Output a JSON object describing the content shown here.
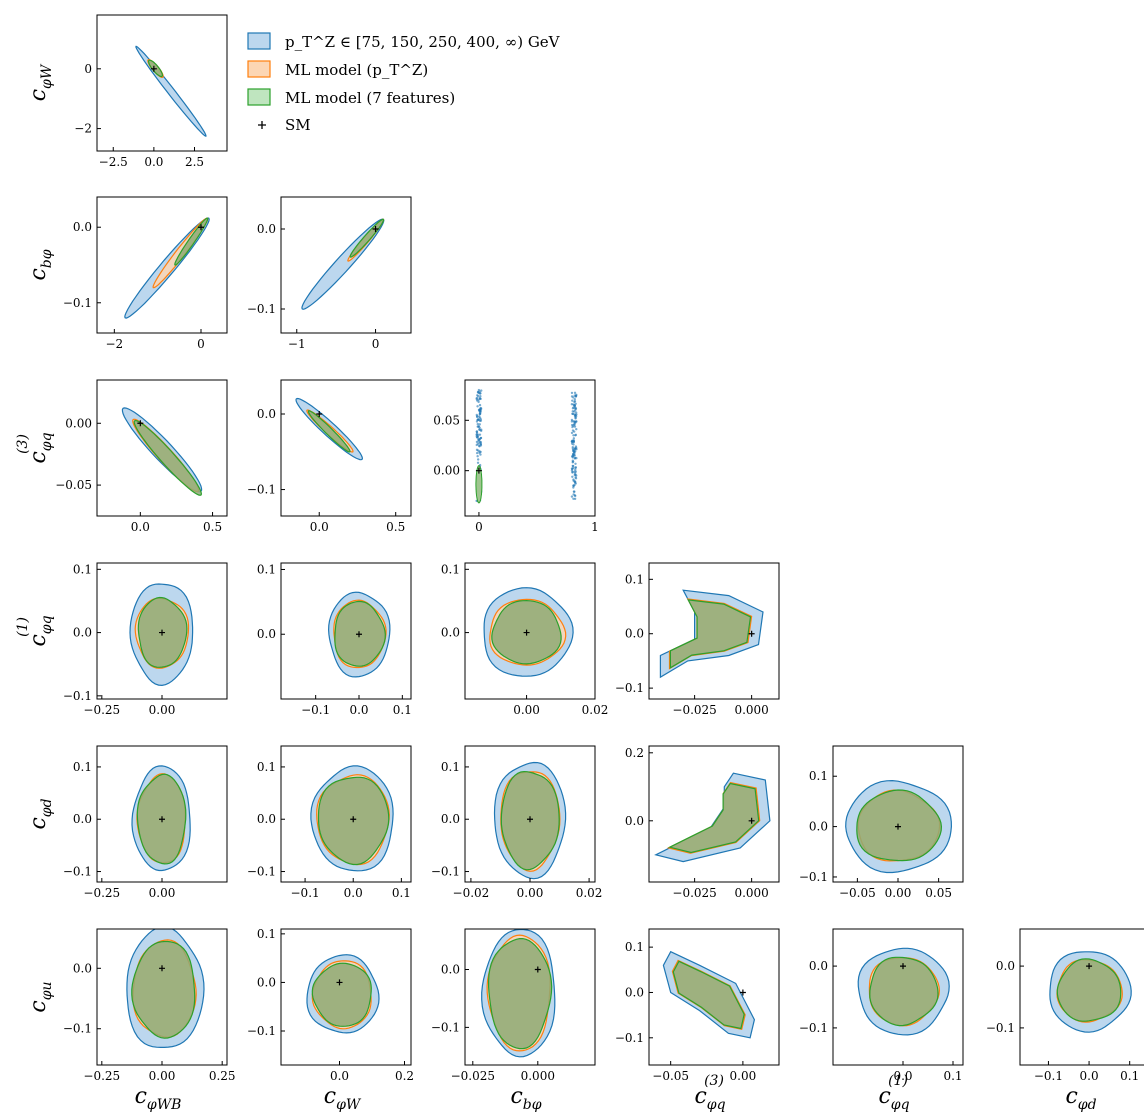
{
  "legend": {
    "items": [
      {
        "label": "p_T^Z ∈ [75, 150, 250, 400, ∞) GeV",
        "fill": "#bcd7ee",
        "edge": "#1f77b4"
      },
      {
        "label": "ML model (p_T^Z)",
        "fill": "#fcd6b4",
        "edge": "#ff7f0e"
      },
      {
        "label": "ML model (7 features)",
        "fill": "#bfe5bf",
        "edge": "#2ca02c"
      },
      {
        "label": "SM",
        "marker": "+"
      }
    ]
  },
  "colors": {
    "blue": "#1f77b4",
    "orange": "#ff7f0e",
    "green": "#2ca02c",
    "overlap": "#8faa74"
  },
  "bottom_labels": {
    "c0": {
      "main": "c",
      "sub": "φWB"
    },
    "c1": {
      "main": "c",
      "sub": "φW"
    },
    "c2": {
      "main": "c",
      "sub": "bφ"
    },
    "c3": {
      "main": "c",
      "sub": "φq",
      "sup": "(3)"
    },
    "c4": {
      "main": "c",
      "sub": "φq",
      "sup": "(1)"
    },
    "c5": {
      "main": "c",
      "sub": "φd"
    }
  },
  "left_labels": {
    "r0": {
      "main": "c",
      "sub": "φW"
    },
    "r1": {
      "main": "c",
      "sub": "bφ"
    },
    "r2": {
      "main": "c",
      "sub": "φq",
      "sup": "(3)"
    },
    "r3": {
      "main": "c",
      "sub": "φq",
      "sup": "(1)"
    },
    "r4": {
      "main": "c",
      "sub": "φd"
    },
    "r5": {
      "main": "c",
      "sub": "φu"
    }
  },
  "chart_data": [
    {
      "type": "scatter",
      "row": 0,
      "col": 0,
      "xlim": [
        -3.5,
        4.5
      ],
      "ylim": [
        -2.75,
        1.8
      ],
      "xticks": [
        {
          "v": -2.5,
          "t": "−2.5"
        },
        {
          "v": 0,
          "t": "0.0"
        },
        {
          "v": 2.5,
          "t": "2.5"
        }
      ],
      "yticks": [
        {
          "v": -2,
          "t": "−2"
        },
        {
          "v": 0,
          "t": "0"
        }
      ],
      "shape": {
        "kind": "ellipse",
        "cx": 1.05,
        "cy": -0.75,
        "ax": 2.3,
        "ay": -1.55,
        "w": 0.08
      },
      "regions": {
        "blue": {
          "cx": 1.05,
          "cy": -0.75,
          "a": 2.3,
          "w": 0.09
        },
        "orange": {
          "cx": 0.1,
          "cy": 0.02,
          "a": 0.6,
          "w": 0.08
        },
        "green": {
          "cx": 0.1,
          "cy": 0.02,
          "a": 0.55,
          "w": 0.07
        }
      },
      "sm": [
        0,
        0
      ]
    },
    {
      "type": "scatter",
      "row": 1,
      "col": 0,
      "xlim": [
        -2.4,
        0.6
      ],
      "ylim": [
        -0.14,
        0.04
      ],
      "xticks": [
        {
          "v": -2,
          "t": "−2"
        },
        {
          "v": 0,
          "t": "0"
        }
      ],
      "yticks": [
        {
          "v": -0.1,
          "t": "−0.1"
        },
        {
          "v": 0,
          "t": "0.0"
        }
      ],
      "regions": {
        "blue": {
          "x0": -1.75,
          "y0": -0.12,
          "x1": 0.18,
          "y1": 0.012,
          "w": 0.11
        },
        "orange": {
          "x0": -1.1,
          "y0": -0.08,
          "x1": 0.15,
          "y1": 0.012,
          "w": 0.1
        },
        "green": {
          "x0": -0.6,
          "y0": -0.05,
          "x1": 0.15,
          "y1": 0.012,
          "w": 0.09
        }
      },
      "sm": [
        0,
        0
      ]
    },
    {
      "type": "scatter",
      "row": 1,
      "col": 1,
      "xlim": [
        -1.2,
        0.45
      ],
      "ylim": [
        -0.13,
        0.04
      ],
      "xticks": [
        {
          "v": -1,
          "t": "−1"
        },
        {
          "v": 0,
          "t": "0"
        }
      ],
      "yticks": [
        {
          "v": -0.1,
          "t": "−0.1"
        },
        {
          "v": 0,
          "t": "0.0"
        }
      ],
      "regions": {
        "blue": {
          "x0": -0.93,
          "y0": -0.1,
          "x1": 0.1,
          "y1": 0.012,
          "w": 0.12
        },
        "orange": {
          "x0": -0.35,
          "y0": -0.04,
          "x1": 0.1,
          "y1": 0.012,
          "w": 0.1
        },
        "green": {
          "x0": -0.32,
          "y0": -0.035,
          "x1": 0.1,
          "y1": 0.012,
          "w": 0.09
        }
      },
      "sm": [
        0,
        0
      ]
    },
    {
      "type": "scatter",
      "row": 2,
      "col": 0,
      "xlim": [
        -0.3,
        0.6
      ],
      "ylim": [
        -0.075,
        0.035
      ],
      "xticks": [
        {
          "v": 0,
          "t": "0.0"
        },
        {
          "v": 0.5,
          "t": "0.5"
        }
      ],
      "yticks": [
        {
          "v": -0.05,
          "t": "−0.05"
        },
        {
          "v": 0,
          "t": "0.00"
        }
      ],
      "regions": {
        "blue": {
          "x0": -0.12,
          "y0": 0.012,
          "x1": 0.42,
          "y1": -0.055,
          "w": 0.17
        },
        "orange": {
          "x0": -0.05,
          "y0": 0.003,
          "x1": 0.4,
          "y1": -0.055,
          "w": 0.15
        },
        "green": {
          "x0": -0.04,
          "y0": 0.002,
          "x1": 0.42,
          "y1": -0.058,
          "w": 0.14
        }
      },
      "sm": [
        0,
        0
      ]
    },
    {
      "type": "scatter",
      "row": 2,
      "col": 1,
      "xlim": [
        -0.25,
        0.6
      ],
      "ylim": [
        -0.135,
        0.045
      ],
      "xticks": [
        {
          "v": 0,
          "t": "0.0"
        },
        {
          "v": 0.5,
          "t": "0.5"
        }
      ],
      "yticks": [
        {
          "v": -0.1,
          "t": "−0.1"
        },
        {
          "v": 0,
          "t": "0.0"
        }
      ],
      "regions": {
        "blue": {
          "x0": -0.15,
          "y0": 0.02,
          "x1": 0.28,
          "y1": -0.06,
          "w": 0.15
        },
        "orange": {
          "x0": -0.08,
          "y0": 0.005,
          "x1": 0.22,
          "y1": -0.05,
          "w": 0.13
        },
        "green": {
          "x0": -0.07,
          "y0": 0.004,
          "x1": 0.2,
          "y1": -0.05,
          "w": 0.12
        }
      },
      "sm": [
        0,
        0
      ]
    },
    {
      "type": "scatter",
      "row": 2,
      "col": 2,
      "xlim": [
        -0.12,
        1.0
      ],
      "ylim": [
        -0.045,
        0.09
      ],
      "xticks": [
        {
          "v": 0,
          "t": "0"
        },
        {
          "v": 1,
          "t": "1"
        }
      ],
      "yticks": [
        {
          "v": 0,
          "t": "0.00"
        },
        {
          "v": 0.05,
          "t": "0.05"
        }
      ],
      "strips": [
        {
          "x": 0,
          "y0": -0.03,
          "y1": 0.08
        },
        {
          "x": 0.82,
          "y0": -0.03,
          "y1": 0.078
        }
      ],
      "sm": [
        0,
        0
      ]
    },
    {
      "type": "scatter",
      "row": 3,
      "col": 0,
      "xlim": [
        -0.27,
        0.27
      ],
      "ylim": [
        -0.105,
        0.11
      ],
      "xticks": [
        {
          "v": -0.25,
          "t": "−0.25"
        },
        {
          "v": 0,
          "t": "0.00"
        }
      ],
      "yticks": [
        {
          "v": -0.1,
          "t": "−0.1"
        },
        {
          "v": 0,
          "t": "0.0"
        },
        {
          "v": 0.1,
          "t": "0.1"
        }
      ],
      "blob": {
        "blue": [
          0.13,
          0.08
        ],
        "orange": [
          0.11,
          0.055
        ],
        "green": [
          0.1,
          0.055
        ]
      },
      "sm": [
        0,
        0
      ]
    },
    {
      "type": "scatter",
      "row": 3,
      "col": 1,
      "xlim": [
        -0.18,
        0.12
      ],
      "ylim": [
        -0.1,
        0.11
      ],
      "xticks": [
        {
          "v": -0.1,
          "t": "−0.1"
        },
        {
          "v": 0,
          "t": "0.0"
        },
        {
          "v": 0.1,
          "t": "0.1"
        }
      ],
      "yticks": [
        {
          "v": 0,
          "t": "0.0"
        },
        {
          "v": 0.1,
          "t": "0.1"
        }
      ],
      "blob": {
        "blue": [
          0.07,
          0.065
        ],
        "orange": [
          0.06,
          0.052
        ],
        "green": [
          0.058,
          0.05
        ]
      },
      "sm": [
        0,
        0
      ]
    },
    {
      "type": "scatter",
      "row": 3,
      "col": 2,
      "xlim": [
        -0.018,
        0.02
      ],
      "ylim": [
        -0.105,
        0.11
      ],
      "xticks": [
        {
          "v": 0,
          "t": "0.00"
        },
        {
          "v": 0.02,
          "t": "0.02"
        }
      ],
      "yticks": [
        {
          "v": 0,
          "t": "0.0"
        },
        {
          "v": 0.1,
          "t": "0.1"
        }
      ],
      "blob": {
        "blue": [
          0.013,
          0.07
        ],
        "orange": [
          0.011,
          0.052
        ],
        "green": [
          0.01,
          0.05
        ]
      },
      "sm": [
        0,
        0
      ]
    },
    {
      "type": "scatter",
      "row": 3,
      "col": 3,
      "xlim": [
        -0.045,
        0.012
      ],
      "ylim": [
        -0.12,
        0.13
      ],
      "xticks": [
        {
          "v": -0.025,
          "t": "−0.025"
        },
        {
          "v": 0,
          "t": "0.000"
        }
      ],
      "yticks": [
        {
          "v": -0.1,
          "t": "−0.1"
        },
        {
          "v": 0,
          "t": "0.0"
        },
        {
          "v": 0.1,
          "t": "0.1"
        }
      ],
      "crescent": true,
      "sm": [
        0,
        0
      ]
    },
    {
      "type": "scatter",
      "row": 4,
      "col": 0,
      "xlim": [
        -0.27,
        0.27
      ],
      "ylim": [
        -0.12,
        0.14
      ],
      "xticks": [
        {
          "v": -0.25,
          "t": "−0.25"
        },
        {
          "v": 0,
          "t": "0.00"
        }
      ],
      "yticks": [
        {
          "v": -0.1,
          "t": "−0.1"
        },
        {
          "v": 0,
          "t": "0.0"
        },
        {
          "v": 0.1,
          "t": "0.1"
        }
      ],
      "blob": {
        "blue": [
          0.12,
          0.1
        ],
        "orange": [
          0.1,
          0.085
        ],
        "green": [
          0.1,
          0.085
        ]
      },
      "sm": [
        0,
        0
      ]
    },
    {
      "type": "scatter",
      "row": 4,
      "col": 1,
      "xlim": [
        -0.15,
        0.12
      ],
      "ylim": [
        -0.12,
        0.14
      ],
      "xticks": [
        {
          "v": -0.1,
          "t": "−0.1"
        },
        {
          "v": 0,
          "t": "0.0"
        },
        {
          "v": 0.1,
          "t": "0.1"
        }
      ],
      "yticks": [
        {
          "v": -0.1,
          "t": "−0.1"
        },
        {
          "v": 0,
          "t": "0.0"
        },
        {
          "v": 0.1,
          "t": "0.1"
        }
      ],
      "blob": {
        "blue": [
          0.085,
          0.1
        ],
        "orange": [
          0.075,
          0.085
        ],
        "green": [
          0.073,
          0.083
        ]
      },
      "sm": [
        0,
        0
      ]
    },
    {
      "type": "scatter",
      "row": 4,
      "col": 2,
      "xlim": [
        -0.022,
        0.022
      ],
      "ylim": [
        -0.12,
        0.14
      ],
      "xticks": [
        {
          "v": -0.02,
          "t": "−0.02"
        },
        {
          "v": 0,
          "t": "0.00"
        },
        {
          "v": 0.02,
          "t": "0.02"
        }
      ],
      "yticks": [
        {
          "v": -0.1,
          "t": "−0.1"
        },
        {
          "v": 0,
          "t": "0.0"
        },
        {
          "v": 0.1,
          "t": "0.1"
        }
      ],
      "blob": {
        "blue": [
          0.012,
          0.11
        ],
        "orange": [
          0.01,
          0.095
        ],
        "green": [
          0.0098,
          0.093
        ]
      },
      "sm": [
        0,
        0
      ]
    },
    {
      "type": "scatter",
      "row": 4,
      "col": 3,
      "xlim": [
        -0.045,
        0.012
      ],
      "ylim": [
        -0.18,
        0.22
      ],
      "xticks": [
        {
          "v": -0.025,
          "t": "−0.025"
        },
        {
          "v": 0,
          "t": "0.000"
        }
      ],
      "yticks": [
        {
          "v": 0,
          "t": "0.0"
        },
        {
          "v": 0.2,
          "t": "0.2"
        }
      ],
      "crescent2": true,
      "sm": [
        0,
        0
      ]
    },
    {
      "type": "scatter",
      "row": 4,
      "col": 4,
      "xlim": [
        -0.08,
        0.08
      ],
      "ylim": [
        -0.11,
        0.16
      ],
      "xticks": [
        {
          "v": -0.05,
          "t": "−0.05"
        },
        {
          "v": 0,
          "t": "0.00"
        },
        {
          "v": 0.05,
          "t": "0.05"
        }
      ],
      "yticks": [
        {
          "v": -0.1,
          "t": "−0.1"
        },
        {
          "v": 0,
          "t": "0.0"
        },
        {
          "v": 0.1,
          "t": "0.1"
        }
      ],
      "blob": {
        "blue": [
          0.065,
          0.09
        ],
        "orange": [
          0.05,
          0.07
        ],
        "green": [
          0.052,
          0.07
        ]
      },
      "sm": [
        0,
        0
      ]
    },
    {
      "type": "scatter",
      "row": 5,
      "col": 0,
      "xlim": [
        -0.27,
        0.27
      ],
      "ylim": [
        -0.16,
        0.065
      ],
      "xticks": [
        {
          "v": -0.25,
          "t": "−0.25"
        },
        {
          "v": 0,
          "t": "0.00"
        },
        {
          "v": 0.25,
          "t": "0.25"
        }
      ],
      "yticks": [
        {
          "v": -0.1,
          "t": "−0.1"
        },
        {
          "v": 0,
          "t": "0.0"
        }
      ],
      "tilted": {
        "blue": [
          0.16,
          0.1
        ],
        "orange": [
          0.13,
          0.08
        ],
        "green": [
          0.13,
          0.08
        ],
        "angle": -35,
        "cy": -0.035
      },
      "sm": [
        0,
        0
      ]
    },
    {
      "type": "scatter",
      "row": 5,
      "col": 1,
      "xlim": [
        -0.18,
        0.22
      ],
      "ylim": [
        -0.17,
        0.11
      ],
      "xticks": [
        {
          "v": 0,
          "t": "0.0"
        },
        {
          "v": 0.2,
          "t": "0.2"
        }
      ],
      "yticks": [
        {
          "v": -0.1,
          "t": "−0.1"
        },
        {
          "v": 0,
          "t": "0.0"
        },
        {
          "v": 0.1,
          "t": "0.1"
        }
      ],
      "tilted": {
        "blue": [
          0.11,
          0.08
        ],
        "orange": [
          0.09,
          0.07
        ],
        "green": [
          0.09,
          0.065
        ],
        "angle": -45,
        "cy": -0.025
      },
      "sm": [
        0,
        0
      ]
    },
    {
      "type": "scatter",
      "row": 5,
      "col": 2,
      "xlim": [
        -0.028,
        0.022
      ],
      "ylim": [
        -0.165,
        0.07
      ],
      "xticks": [
        {
          "v": -0.025,
          "t": "−0.025"
        },
        {
          "v": 0,
          "t": "0.000"
        }
      ],
      "yticks": [
        {
          "v": -0.1,
          "t": "−0.1"
        },
        {
          "v": 0,
          "t": "0.0"
        }
      ],
      "tilted": {
        "blue": [
          0.014,
          0.11
        ],
        "orange": [
          0.012,
          0.1
        ],
        "green": [
          0.012,
          0.095
        ],
        "angle": 40,
        "cy": -0.04,
        "cx": -0.007
      },
      "sm": [
        0,
        0
      ]
    },
    {
      "type": "scatter",
      "row": 5,
      "col": 3,
      "xlim": [
        -0.065,
        0.025
      ],
      "ylim": [
        -0.16,
        0.14
      ],
      "xticks": [
        {
          "v": -0.05,
          "t": "−0.05"
        },
        {
          "v": 0,
          "t": "0.00"
        }
      ],
      "yticks": [
        {
          "v": -0.1,
          "t": "−0.1"
        },
        {
          "v": 0,
          "t": "0.0"
        },
        {
          "v": 0.1,
          "t": "0.1"
        }
      ],
      "banana": true,
      "sm": [
        0,
        0
      ]
    },
    {
      "type": "scatter",
      "row": 5,
      "col": 4,
      "xlim": [
        -0.14,
        0.12
      ],
      "ylim": [
        -0.16,
        0.06
      ],
      "xticks": [
        {
          "v": 0,
          "t": "0.0"
        },
        {
          "v": 0.1,
          "t": "0.1"
        }
      ],
      "yticks": [
        {
          "v": -0.1,
          "t": "−0.1"
        },
        {
          "v": 0,
          "t": "0.0"
        }
      ],
      "blob": {
        "blue": [
          0.09,
          0.07
        ],
        "orange": [
          0.07,
          0.055
        ],
        "green": [
          0.068,
          0.055
        ],
        "cy": -0.04
      },
      "sm": [
        0,
        0
      ]
    },
    {
      "type": "scatter",
      "row": 5,
      "col": 5,
      "xlim": [
        -0.17,
        0.15
      ],
      "ylim": [
        -0.16,
        0.06
      ],
      "xticks": [
        {
          "v": -0.1,
          "t": "−0.1"
        },
        {
          "v": 0,
          "t": "0.0"
        },
        {
          "v": 0.1,
          "t": "0.1"
        }
      ],
      "yticks": [
        {
          "v": -0.1,
          "t": "−0.1"
        },
        {
          "v": 0,
          "t": "0.0"
        }
      ],
      "blob": {
        "blue": [
          0.1,
          0.065
        ],
        "orange": [
          0.08,
          0.05
        ],
        "green": [
          0.078,
          0.05
        ],
        "cy": -0.04
      },
      "sm": [
        0,
        0
      ]
    }
  ]
}
